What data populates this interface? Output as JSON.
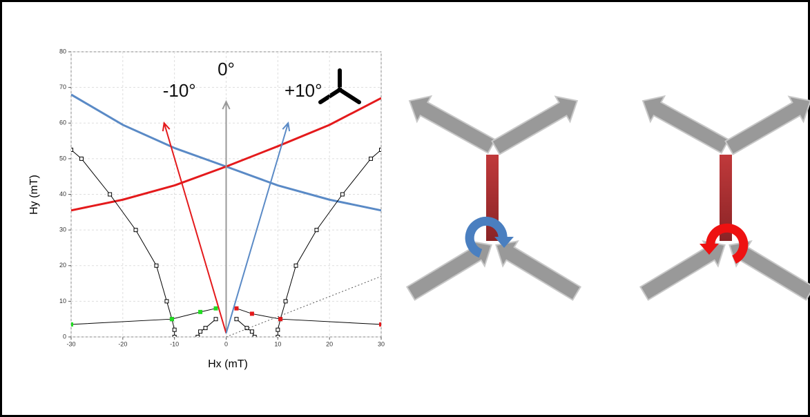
{
  "chart_data": {
    "type": "line",
    "xlabel": "Hx (mT)",
    "ylabel": "Hy (mT)",
    "xlim": [
      -30,
      30
    ],
    "ylim": [
      0,
      80
    ],
    "xticks": [
      -30,
      -20,
      -10,
      0,
      10,
      20,
      30
    ],
    "yticks": [
      0,
      10,
      20,
      30,
      40,
      50,
      60,
      70,
      80
    ],
    "grid": true,
    "series": [
      {
        "color": "#5a8ac6",
        "width": 3,
        "x": [
          -30,
          -20,
          -10,
          0,
          10,
          20,
          30
        ],
        "values": [
          68,
          59.5,
          53,
          47.8,
          42.5,
          38.5,
          35.5
        ]
      },
      {
        "color": "#e41a1c",
        "width": 3,
        "x": [
          -30,
          -20,
          -10,
          0,
          10,
          20,
          30
        ],
        "values": [
          35.5,
          38.5,
          42.5,
          47.8,
          53.5,
          59.5,
          67
        ]
      },
      {
        "color": "#000000",
        "width": 1,
        "marker_color": "#000000",
        "x": [
          -30,
          -28,
          -22.5,
          -17.5,
          -13.5,
          -11.5,
          -10.5,
          -10,
          -10
        ],
        "values": [
          52.5,
          50,
          40,
          30,
          20,
          10,
          5,
          2,
          0
        ]
      },
      {
        "color": "#000000",
        "width": 1,
        "marker_color": "#000000",
        "x": [
          30,
          28,
          22.5,
          17.5,
          13.5,
          11.5,
          10.5,
          10,
          10
        ],
        "values": [
          52.5,
          50,
          40,
          30,
          20,
          10,
          5,
          2,
          0
        ]
      },
      {
        "color": "#000000",
        "width": 1,
        "marker_color": "#22dd22",
        "x": [
          -30,
          -10.5,
          -5,
          -2
        ],
        "values": [
          3.5,
          5,
          7,
          8
        ]
      },
      {
        "color": "#000000",
        "width": 1,
        "marker_color": "#e41a1c",
        "x": [
          30,
          10.5,
          5,
          2
        ],
        "values": [
          3.5,
          5,
          6.5,
          8
        ]
      },
      {
        "color": "#000000",
        "width": 1,
        "marker_color": "#000000",
        "x": [
          -5.5,
          -5,
          -4,
          -2
        ],
        "values": [
          0,
          1.5,
          2.5,
          5
        ]
      },
      {
        "color": "#000000",
        "width": 1,
        "marker_color": "#000000",
        "x": [
          5.5,
          5,
          4,
          2
        ],
        "values": [
          0,
          1.5,
          2.5,
          5
        ]
      },
      {
        "color": "#555555",
        "width": 1,
        "dashed": true,
        "x": [
          0,
          30
        ],
        "values": [
          0,
          17
        ]
      }
    ],
    "arrows": [
      {
        "label": "0°",
        "color": "#999999",
        "x": [
          0,
          0
        ],
        "y": [
          1,
          66
        ]
      },
      {
        "label": "-10°",
        "color": "#e41a1c",
        "x": [
          0,
          -12
        ],
        "y": [
          1,
          60
        ]
      },
      {
        "label": "+10°",
        "color": "#5a8ac6",
        "x": [
          0,
          12
        ],
        "y": [
          1,
          60
        ]
      }
    ]
  }
}
